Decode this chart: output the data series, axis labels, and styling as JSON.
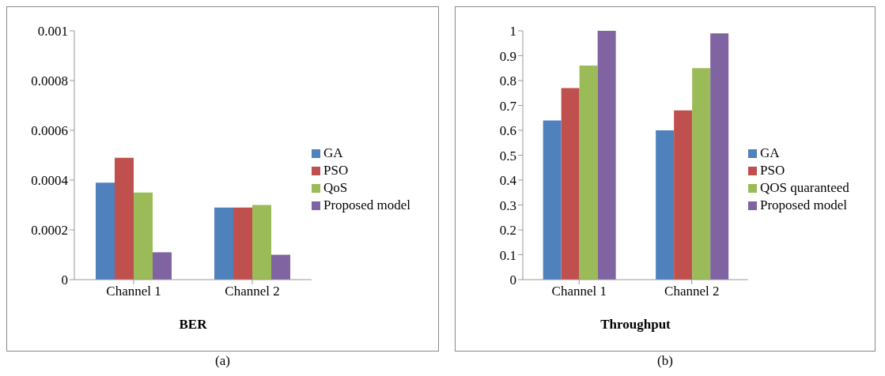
{
  "chart_data": [
    {
      "type": "bar",
      "xlabel": "BER",
      "categories": [
        "Channel 1",
        "Channel 2"
      ],
      "series": [
        {
          "name": "GA",
          "color": "#4f81bd",
          "values": [
            0.00039,
            0.00029
          ]
        },
        {
          "name": "PSO",
          "color": "#c0504d",
          "values": [
            0.00049,
            0.00029
          ]
        },
        {
          "name": "QoS",
          "color": "#9bbb59",
          "values": [
            0.00035,
            0.0003
          ]
        },
        {
          "name": "Proposed model",
          "color": "#8064a2",
          "values": [
            0.00011,
            0.0001
          ]
        }
      ],
      "ylim": [
        0,
        0.001
      ],
      "yticks": [
        0,
        0.0002,
        0.0004,
        0.0006,
        0.0008,
        0.001
      ],
      "grid": false,
      "legend": "right",
      "annotations": [
        "(a)"
      ]
    },
    {
      "type": "bar",
      "xlabel": "Throughput",
      "categories": [
        "Channel 1",
        "Channel 2"
      ],
      "series": [
        {
          "name": "GA",
          "color": "#4f81bd",
          "values": [
            0.64,
            0.6
          ]
        },
        {
          "name": "PSO",
          "color": "#c0504d",
          "values": [
            0.77,
            0.68
          ]
        },
        {
          "name": "QOS quaranteed",
          "color": "#9bbb59",
          "values": [
            0.86,
            0.85
          ]
        },
        {
          "name": "Proposed model",
          "color": "#8064a2",
          "values": [
            1.0,
            0.99
          ]
        }
      ],
      "ylim": [
        0,
        1
      ],
      "yticks": [
        0,
        0.1,
        0.2,
        0.3,
        0.4,
        0.5,
        0.6,
        0.7,
        0.8,
        0.9,
        1
      ],
      "grid": false,
      "legend": "right",
      "annotations": [
        "(b)"
      ]
    }
  ]
}
